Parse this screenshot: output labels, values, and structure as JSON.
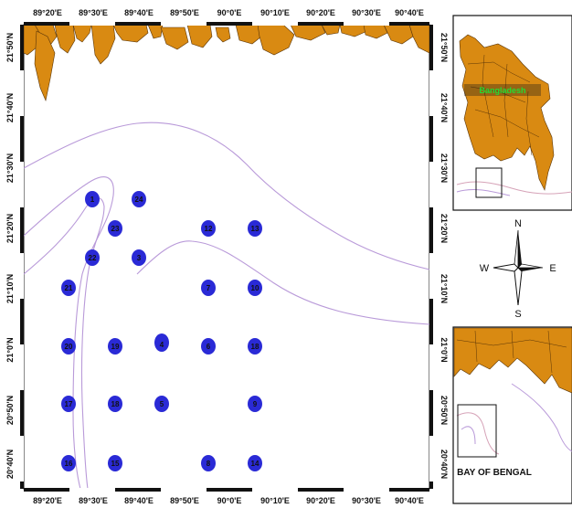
{
  "axis_labels": {
    "top": [
      "89°20'E",
      "89°30'E",
      "89°40'E",
      "89°50'E",
      "90°0'E",
      "90°10'E",
      "90°20'E",
      "90°30'E",
      "90°40'E"
    ],
    "bottom": [
      "89°20'E",
      "89°30'E",
      "89°40'E",
      "89°50'E",
      "90°0'E",
      "90°10'E",
      "90°20'E",
      "90°30'E",
      "90°40'E"
    ],
    "left": [
      "21°50'N",
      "21°40'N",
      "21°30'N",
      "21°20'N",
      "21°10'N",
      "21°0'N",
      "20°50'N",
      "20°40'N"
    ],
    "right": [
      "21°50'N",
      "21°40'N",
      "21°30'N",
      "21°20'N",
      "21°10'N",
      "21°0'N",
      "20°50'N",
      "20°40'N"
    ]
  },
  "stations": [
    {
      "id": "1"
    },
    {
      "id": "24"
    },
    {
      "id": "23"
    },
    {
      "id": "12"
    },
    {
      "id": "13"
    },
    {
      "id": "22"
    },
    {
      "id": "3"
    },
    {
      "id": "21"
    },
    {
      "id": "7"
    },
    {
      "id": "10"
    },
    {
      "id": "20"
    },
    {
      "id": "19"
    },
    {
      "id": "4"
    },
    {
      "id": "6"
    },
    {
      "id": "18"
    },
    {
      "id": "17"
    },
    {
      "id": "18"
    },
    {
      "id": "5"
    },
    {
      "id": "9"
    },
    {
      "id": "16"
    },
    {
      "id": "15"
    },
    {
      "id": "8"
    },
    {
      "id": "14"
    }
  ],
  "inset_top": {
    "country_label": "Bangladesh"
  },
  "compass": {
    "north": "N",
    "south": "S",
    "east": "E",
    "west": "W"
  },
  "inset_bottom": {
    "caption": "BAY OF BENGAL"
  },
  "colors": {
    "land": "#d98a12",
    "land_border": "#5a3508",
    "station": "#2a2ad6",
    "contour": "#b99ad9",
    "country_label": "#22dd33"
  }
}
